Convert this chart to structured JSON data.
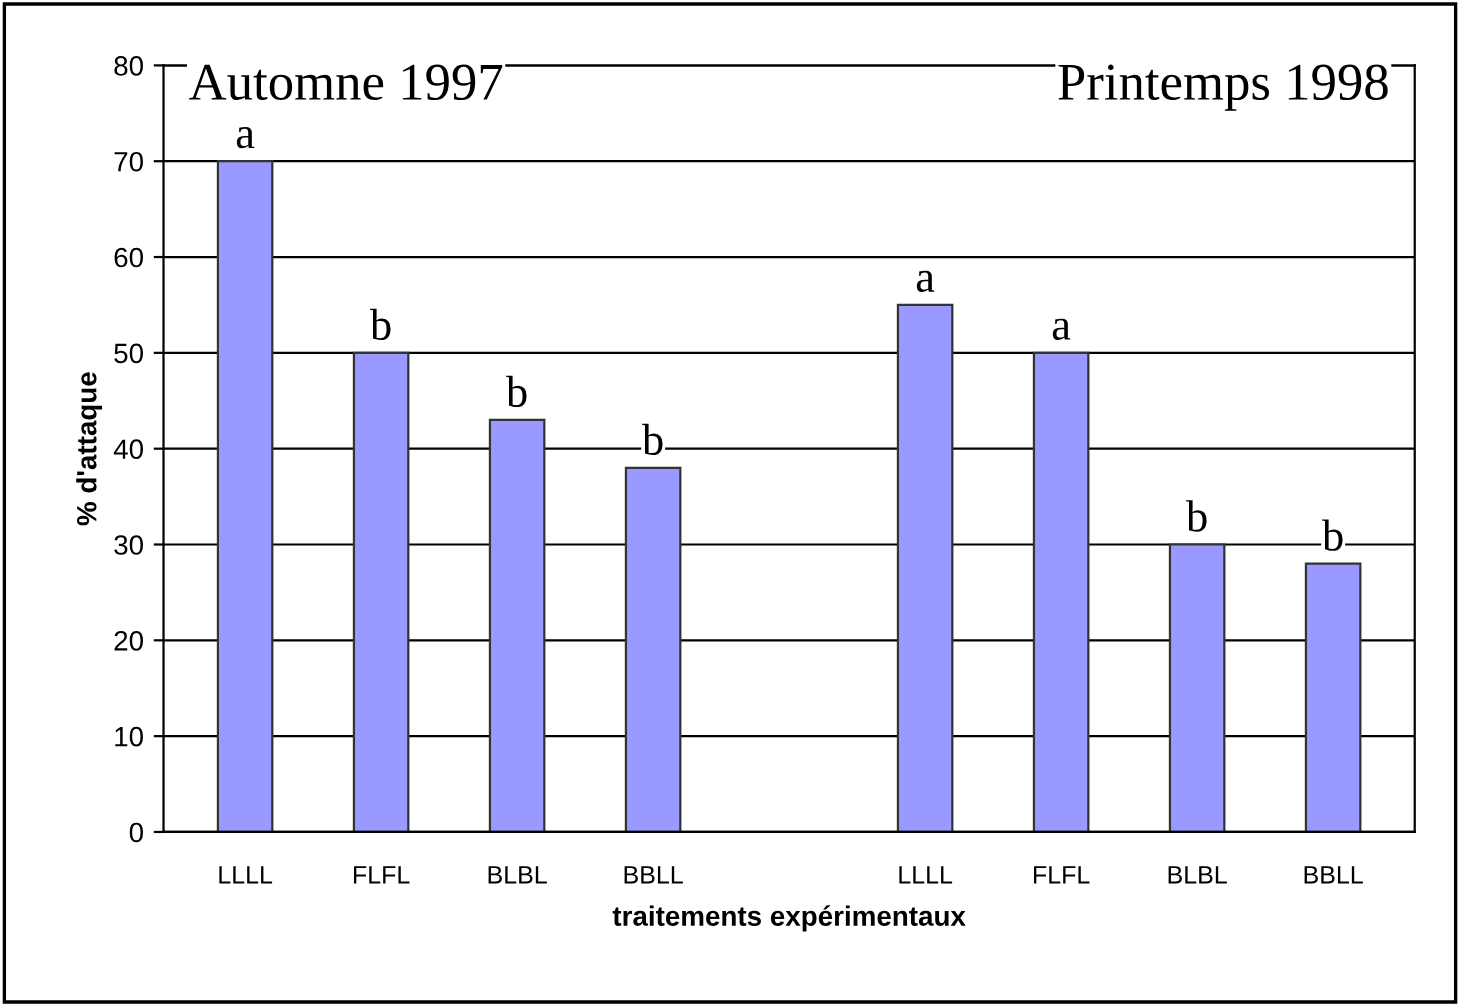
{
  "chart_data": {
    "type": "bar",
    "xlabel": "traitements expérimentaux",
    "ylabel": "% d'attaque",
    "categories": [
      "LLLL",
      "FLFL",
      "BLBL",
      "BBLL",
      null,
      "LLLL",
      "FLFL",
      "BLBL",
      "BBLL"
    ],
    "values": [
      70,
      50,
      43,
      38,
      null,
      55,
      50,
      30,
      28
    ],
    "value_labels": [
      "a",
      "b",
      "b",
      "b",
      null,
      "a",
      "a",
      "b",
      "b"
    ],
    "color": "#9999ff",
    "ylim": [
      0,
      80
    ],
    "yticks": [
      0,
      10,
      20,
      30,
      40,
      50,
      60,
      70,
      80
    ],
    "grid": "y",
    "annotations": [
      "Automne 1997",
      "Printemps 1998"
    ]
  }
}
